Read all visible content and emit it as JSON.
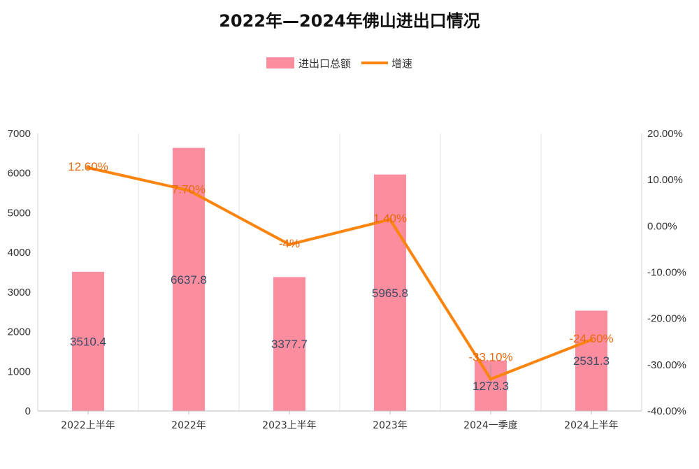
{
  "chart_data": {
    "type": "bar",
    "title": "2022年—2024年佛山进出口情况",
    "categories": [
      "2022上半年",
      "2022年",
      "2023上半年",
      "2023年",
      "2024一季度",
      "2024上半年"
    ],
    "series": [
      {
        "name": "进出口总额",
        "type": "bar",
        "axis": "left",
        "color": "#fb8d9e",
        "values": [
          3510.4,
          6637.8,
          3377.7,
          5965.8,
          1273.3,
          2531.3
        ],
        "labels": [
          "3510.4",
          "6637.8",
          "3377.7",
          "5965.8",
          "1273.3",
          "2531.3"
        ]
      },
      {
        "name": "增速",
        "type": "line",
        "axis": "right",
        "color": "#fb840e",
        "values": [
          12.6,
          7.7,
          -4,
          1.4,
          -33.1,
          -24.6
        ],
        "labels": [
          "12.60%",
          "7.70%",
          "-4%",
          "1.40%",
          "-33.10%",
          "-24.60%"
        ]
      }
    ],
    "y_left": {
      "min": 0,
      "max": 7000,
      "step": 1000,
      "ticks": [
        "0",
        "1000",
        "2000",
        "3000",
        "4000",
        "5000",
        "6000",
        "7000"
      ]
    },
    "y_right": {
      "min": -40,
      "max": 20,
      "step": 10,
      "ticks": [
        "-40.00%",
        "-30.00%",
        "-20.00%",
        "-10.00%",
        "0.00%",
        "10.00%",
        "20.00%"
      ]
    },
    "legend": {
      "position": "top-center",
      "items": [
        "进出口总额",
        "增速"
      ]
    },
    "grid": {
      "vertical": true,
      "horizontal": false
    }
  }
}
